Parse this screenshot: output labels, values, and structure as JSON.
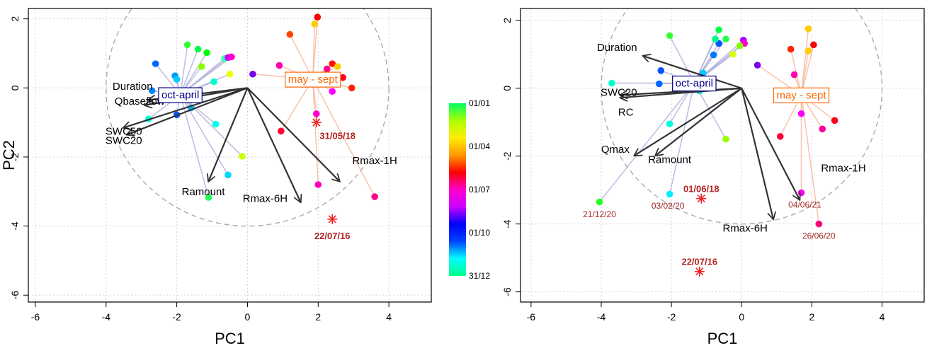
{
  "chart_data": [
    {
      "type": "scatter",
      "subtype": "pca-biplot",
      "xlabel": "PC1",
      "ylabel": "PC2",
      "xlim": [
        -6.2,
        5.2
      ],
      "ylim": [
        -6.2,
        2.3
      ],
      "xticks": [
        -6,
        -4,
        -2,
        0,
        2,
        4
      ],
      "yticks": [
        -6,
        -4,
        -2,
        0,
        2
      ],
      "grid": true,
      "correlation_circle_radius": 4,
      "groups": [
        {
          "label": "oct-april",
          "x": -1.9,
          "y": -0.2,
          "color": "#00008b"
        },
        {
          "label": "may - sept",
          "x": 1.85,
          "y": 0.25,
          "color": "#ff6600"
        }
      ],
      "arrows": [
        {
          "label": "Duration",
          "x": -2.8,
          "y": -0.35,
          "label_x": -3.25,
          "label_y": 0.05
        },
        {
          "label": "Qbaseflow",
          "x": -2.9,
          "y": -0.5,
          "label_x": -3.05,
          "label_y": -0.38
        },
        {
          "label": "SWC50",
          "x": -3.5,
          "y": -1.15,
          "label_x": -3.5,
          "label_y": -1.25
        },
        {
          "label": "SWC20",
          "x": -3.4,
          "y": -1.35,
          "label_x": -3.5,
          "label_y": -1.52
        },
        {
          "label": "Ramount",
          "x": -1.1,
          "y": -2.7,
          "label_x": -1.25,
          "label_y": -3.0
        },
        {
          "label": "Rmax-6H",
          "x": 1.5,
          "y": -3.3,
          "label_x": 0.5,
          "label_y": -3.2
        },
        {
          "label": "Rmax-1H",
          "x": 2.6,
          "y": -2.7,
          "label_x": 3.6,
          "label_y": -2.1
        }
      ],
      "points": [
        {
          "x": 1.98,
          "y": 2.05,
          "c": "#ff0000"
        },
        {
          "x": 1.9,
          "y": 1.85,
          "c": "#ffcc00"
        },
        {
          "x": 1.2,
          "y": 1.55,
          "c": "#ff4400"
        },
        {
          "x": -1.7,
          "y": 1.25,
          "c": "#33ff33"
        },
        {
          "x": -1.4,
          "y": 1.12,
          "c": "#00ff44"
        },
        {
          "x": -1.15,
          "y": 1.02,
          "c": "#00ff00"
        },
        {
          "x": -0.65,
          "y": 0.85,
          "c": "#33ffaa"
        },
        {
          "x": -0.55,
          "y": 0.88,
          "c": "#cc00ff"
        },
        {
          "x": -0.45,
          "y": 0.9,
          "c": "#ff00cc"
        },
        {
          "x": -2.6,
          "y": 0.7,
          "c": "#0066ff"
        },
        {
          "x": -1.3,
          "y": 0.62,
          "c": "#88ff00"
        },
        {
          "x": 0.9,
          "y": 0.65,
          "c": "#ff00aa"
        },
        {
          "x": 2.4,
          "y": 0.7,
          "c": "#ff1100"
        },
        {
          "x": 2.55,
          "y": 0.62,
          "c": "#ffcc00"
        },
        {
          "x": 2.25,
          "y": 0.55,
          "c": "#ff0088"
        },
        {
          "x": -2.05,
          "y": 0.35,
          "c": "#0099ff"
        },
        {
          "x": -2.0,
          "y": 0.25,
          "c": "#00ccff"
        },
        {
          "x": -0.95,
          "y": 0.18,
          "c": "#00ffcc"
        },
        {
          "x": -0.5,
          "y": 0.4,
          "c": "#eeff00"
        },
        {
          "x": 0.15,
          "y": 0.4,
          "c": "#7700ee"
        },
        {
          "x": -2.7,
          "y": -0.08,
          "c": "#0088ff"
        },
        {
          "x": 2.4,
          "y": -0.1,
          "c": "#ff00ff"
        },
        {
          "x": 2.95,
          "y": 0.0,
          "c": "#ff2200"
        },
        {
          "x": 2.7,
          "y": 0.3,
          "c": "#ff0022"
        },
        {
          "x": -1.6,
          "y": -0.58,
          "c": "#00bbff"
        },
        {
          "x": -2.0,
          "y": -0.78,
          "c": "#0055ff"
        },
        {
          "x": -2.8,
          "y": -0.9,
          "c": "#00ffdd"
        },
        {
          "x": -0.9,
          "y": -1.05,
          "c": "#00ffee"
        },
        {
          "x": 1.95,
          "y": -0.75,
          "c": "#ff00cc"
        },
        {
          "x": 0.95,
          "y": -1.25,
          "c": "#ff0033"
        },
        {
          "x": -0.15,
          "y": -1.98,
          "c": "#ccff00"
        },
        {
          "x": -0.55,
          "y": -2.52,
          "c": "#00ddff"
        },
        {
          "x": -1.1,
          "y": -3.17,
          "c": "#22ff55"
        },
        {
          "x": 2.0,
          "y": -2.8,
          "c": "#ff00bb"
        },
        {
          "x": 3.6,
          "y": -3.15,
          "c": "#ff0088"
        }
      ],
      "highlights": [
        {
          "label": "31/05/18",
          "x": 1.95,
          "y": -1.0,
          "label_x": 2.55,
          "label_y": -1.4
        },
        {
          "label": "22/07/16",
          "x": 2.4,
          "y": -3.8,
          "label_x": 2.4,
          "label_y": -4.3
        }
      ]
    },
    {
      "type": "scatter",
      "subtype": "pca-biplot",
      "xlabel": "PC1",
      "ylabel": "PC2",
      "xlim": [
        -6.3,
        5.2
      ],
      "ylim": [
        -6.3,
        2.35
      ],
      "xticks": [
        -6,
        -4,
        -2,
        0,
        2,
        4
      ],
      "yticks": [
        -6,
        -4,
        -2,
        0,
        2
      ],
      "grid": true,
      "correlation_circle_radius": 4,
      "groups": [
        {
          "label": "oct-april",
          "x": -1.35,
          "y": 0.15,
          "color": "#00008b"
        },
        {
          "label": "may - sept",
          "x": 1.7,
          "y": -0.2,
          "color": "#ff6600"
        }
      ],
      "arrows": [
        {
          "label": "Duration",
          "x": -2.8,
          "y": 0.95,
          "label_x": -3.55,
          "label_y": 1.2
        },
        {
          "label": "SWC20",
          "x": -3.45,
          "y": -0.2,
          "label_x": -3.5,
          "label_y": -0.12
        },
        {
          "label": "RC",
          "x": -3.45,
          "y": -0.28,
          "label_x": -3.3,
          "label_y": -0.7
        },
        {
          "label": "Qmax",
          "x": -3.05,
          "y": -1.98,
          "label_x": -3.6,
          "label_y": -1.8
        },
        {
          "label": "Ramount",
          "x": -2.45,
          "y": -1.98,
          "label_x": -2.05,
          "label_y": -2.1
        },
        {
          "label": "Rmax-6H",
          "x": 0.9,
          "y": -3.85,
          "label_x": 0.1,
          "label_y": -4.12
        },
        {
          "label": "Rmax-1H",
          "x": 1.65,
          "y": -3.28,
          "label_x": 2.9,
          "label_y": -2.35
        }
      ],
      "points": [
        {
          "x": 1.9,
          "y": 1.75,
          "c": "#ffcc00"
        },
        {
          "x": 2.05,
          "y": 1.28,
          "c": "#ff0000"
        },
        {
          "x": 1.4,
          "y": 1.15,
          "c": "#ff2200"
        },
        {
          "x": 1.9,
          "y": 1.1,
          "c": "#ffcc00"
        },
        {
          "x": -2.05,
          "y": 1.55,
          "c": "#33ff33"
        },
        {
          "x": -0.65,
          "y": 1.72,
          "c": "#00ff44"
        },
        {
          "x": -0.45,
          "y": 1.45,
          "c": "#22ff55"
        },
        {
          "x": 0.05,
          "y": 1.42,
          "c": "#aa00ff"
        },
        {
          "x": 0.08,
          "y": 1.32,
          "c": "#ff00cc"
        },
        {
          "x": -0.65,
          "y": 1.32,
          "c": "#0055ff"
        },
        {
          "x": -0.75,
          "y": 1.45,
          "c": "#00ff88"
        },
        {
          "x": -0.05,
          "y": 1.25,
          "c": "#88ff00"
        },
        {
          "x": -0.25,
          "y": 1.0,
          "c": "#ddff00"
        },
        {
          "x": -0.8,
          "y": 0.98,
          "c": "#0077ff"
        },
        {
          "x": 0.45,
          "y": 0.68,
          "c": "#7700ee"
        },
        {
          "x": -2.3,
          "y": 0.52,
          "c": "#0055ff"
        },
        {
          "x": -1.1,
          "y": 0.45,
          "c": "#00ccff"
        },
        {
          "x": -3.7,
          "y": 0.15,
          "c": "#00ffcc"
        },
        {
          "x": -2.35,
          "y": 0.13,
          "c": "#0066ff"
        },
        {
          "x": -1.05,
          "y": 0.25,
          "c": "#00eeff"
        },
        {
          "x": -1.2,
          "y": -0.08,
          "c": "#00ddff"
        },
        {
          "x": 1.5,
          "y": 0.4,
          "c": "#ff00aa"
        },
        {
          "x": 1.7,
          "y": -0.75,
          "c": "#ff00ff"
        },
        {
          "x": 2.65,
          "y": -0.95,
          "c": "#ff0022"
        },
        {
          "x": 2.3,
          "y": -1.2,
          "c": "#ff0099"
        },
        {
          "x": 1.1,
          "y": -1.42,
          "c": "#ff0033"
        },
        {
          "x": -2.05,
          "y": -1.05,
          "c": "#00ffdd"
        },
        {
          "x": -0.45,
          "y": -1.5,
          "c": "#99ff00"
        },
        {
          "x": -4.05,
          "y": -3.35,
          "c": "#22ff22"
        },
        {
          "x": -2.05,
          "y": -3.12,
          "c": "#00eeff"
        },
        {
          "x": 1.7,
          "y": -3.08,
          "c": "#ff00ee"
        },
        {
          "x": 2.2,
          "y": -4.0,
          "c": "#ff0077"
        }
      ],
      "point_labels": [
        {
          "label": "21/12/20",
          "x": -4.05,
          "y": -3.72
        },
        {
          "label": "03/02/20",
          "x": -2.1,
          "y": -3.47
        },
        {
          "label": "04/06/21",
          "x": 1.8,
          "y": -3.43
        },
        {
          "label": "26/06/20",
          "x": 2.2,
          "y": -4.35
        }
      ],
      "highlights": [
        {
          "label": "01/06/18",
          "x": -1.15,
          "y": -3.25,
          "label_x": -1.15,
          "label_y": -2.98
        },
        {
          "label": "22/07/16",
          "x": -1.2,
          "y": -5.4,
          "label_x": -1.2,
          "label_y": -5.12
        }
      ]
    }
  ],
  "colorbar": {
    "ticks": [
      "01/01",
      "01/04",
      "01/07",
      "01/10",
      "31/12"
    ],
    "stops": [
      "#00ff88",
      "#00ffff",
      "#0044ff",
      "#0000ff",
      "#cc00ff",
      "#ff00cc",
      "#ff0000",
      "#ff9900",
      "#ffee00",
      "#aaff00",
      "#00ff66"
    ]
  }
}
